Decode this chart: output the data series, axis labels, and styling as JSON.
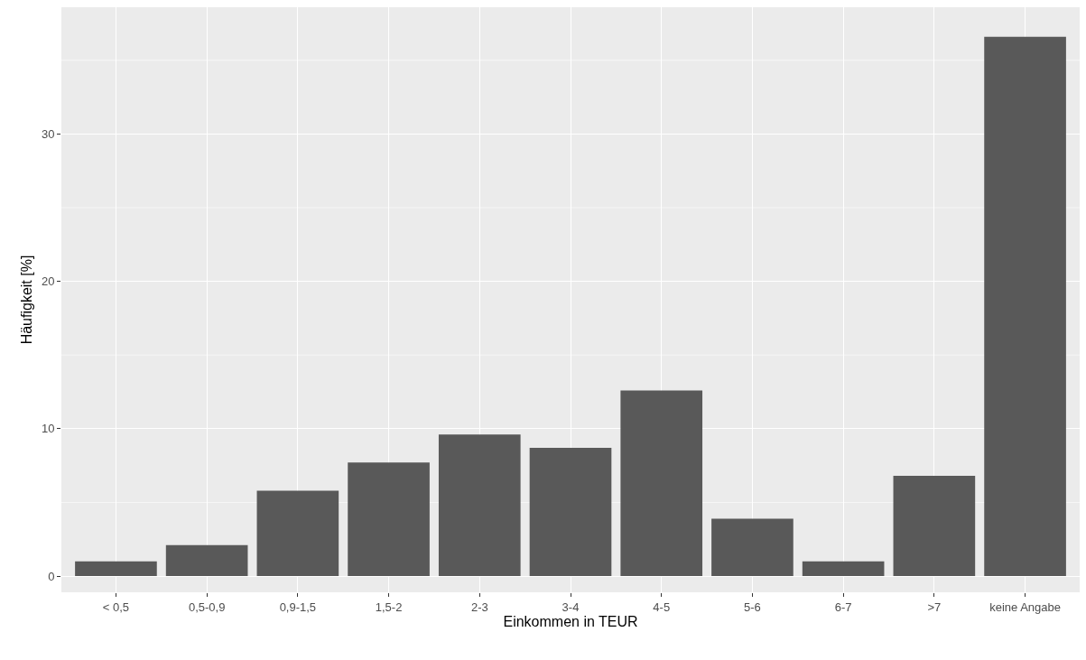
{
  "chart_data": {
    "type": "bar",
    "xlabel": "Einkommen in TEUR",
    "ylabel": "Häufigkeit [%]",
    "categories": [
      "< 0,5",
      "0,5-0,9",
      "0,9-1,5",
      "1,5-2",
      "2-3",
      "3-4",
      "4-5",
      "5-6",
      "6-7",
      ">7",
      "keine Angabe"
    ],
    "values": [
      1.0,
      2.1,
      5.8,
      7.7,
      9.6,
      8.7,
      12.6,
      3.9,
      1.0,
      6.8,
      36.6
    ],
    "color": "#595959",
    "ylim": [
      -1.1,
      38.6
    ],
    "yticks": [
      0,
      {
        "value": 5,
        "label": null
      },
      10,
      {
        "value": 15,
        "label": null
      },
      20,
      {
        "value": 25,
        "label": null
      },
      30,
      {
        "value": 35,
        "label": null
      }
    ],
    "grid": true
  }
}
